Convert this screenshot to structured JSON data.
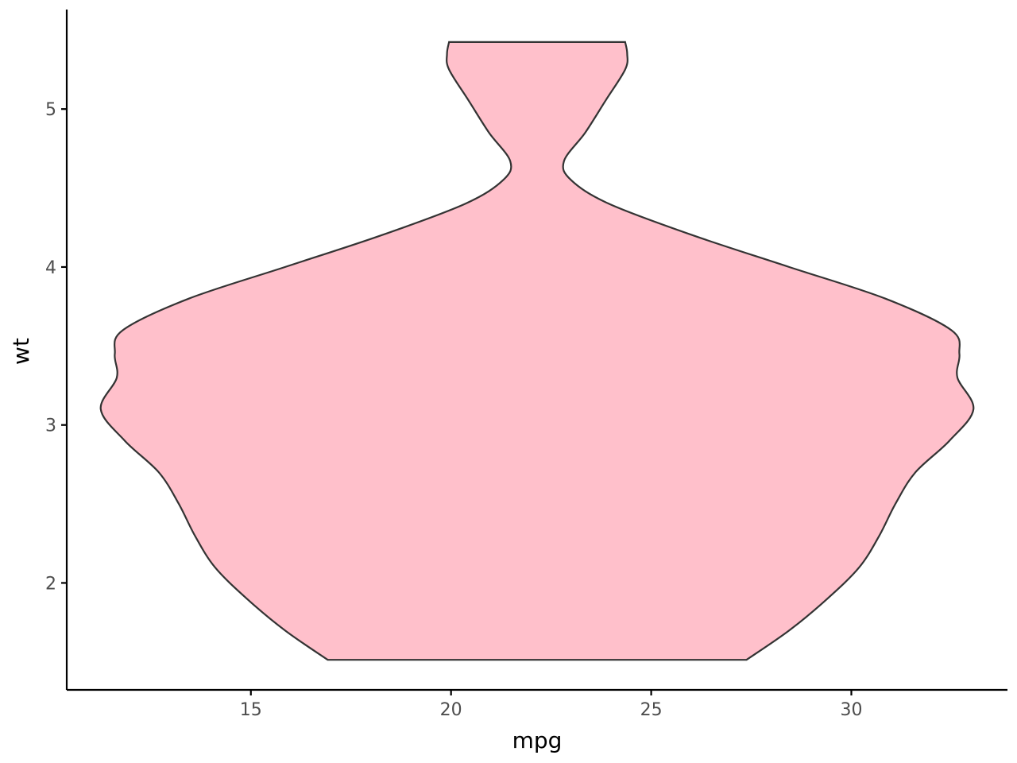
{
  "chart_data": {
    "type": "violin",
    "xlabel": "mpg",
    "ylabel": "wt",
    "xlim": [
      10.4,
      33.9
    ],
    "ylim": [
      1.323,
      5.63
    ],
    "x_ticks": [
      15,
      20,
      25,
      30
    ],
    "x_tick_labels": [
      "15",
      "20",
      "25",
      "30"
    ],
    "y_ticks": [
      2,
      3,
      4,
      5
    ],
    "y_tick_labels": [
      "2",
      "3",
      "4",
      "5"
    ],
    "grid": false,
    "legend": "none",
    "fill_color": "#ffc0cb",
    "line_color": "#333333",
    "center_x": 22.15,
    "profile": [
      {
        "wt": 1.513,
        "half_width": 5.23
      },
      {
        "wt": 1.7,
        "half_width": 6.3
      },
      {
        "wt": 1.9,
        "half_width": 7.25
      },
      {
        "wt": 2.1,
        "half_width": 8.05
      },
      {
        "wt": 2.3,
        "half_width": 8.55
      },
      {
        "wt": 2.5,
        "half_width": 8.95
      },
      {
        "wt": 2.7,
        "half_width": 9.45
      },
      {
        "wt": 2.9,
        "half_width": 10.3
      },
      {
        "wt": 3.1,
        "half_width": 10.9
      },
      {
        "wt": 3.3,
        "half_width": 10.5
      },
      {
        "wt": 3.45,
        "half_width": 10.55
      },
      {
        "wt": 3.6,
        "half_width": 10.35
      },
      {
        "wt": 3.8,
        "half_width": 8.7
      },
      {
        "wt": 4.0,
        "half_width": 6.3
      },
      {
        "wt": 4.2,
        "half_width": 3.9
      },
      {
        "wt": 4.4,
        "half_width": 1.8
      },
      {
        "wt": 4.55,
        "half_width": 0.85
      },
      {
        "wt": 4.67,
        "half_width": 0.67
      },
      {
        "wt": 4.85,
        "half_width": 1.2
      },
      {
        "wt": 5.05,
        "half_width": 1.7
      },
      {
        "wt": 5.25,
        "half_width": 2.2
      },
      {
        "wt": 5.35,
        "half_width": 2.25
      },
      {
        "wt": 5.424,
        "half_width": 2.2
      }
    ]
  }
}
